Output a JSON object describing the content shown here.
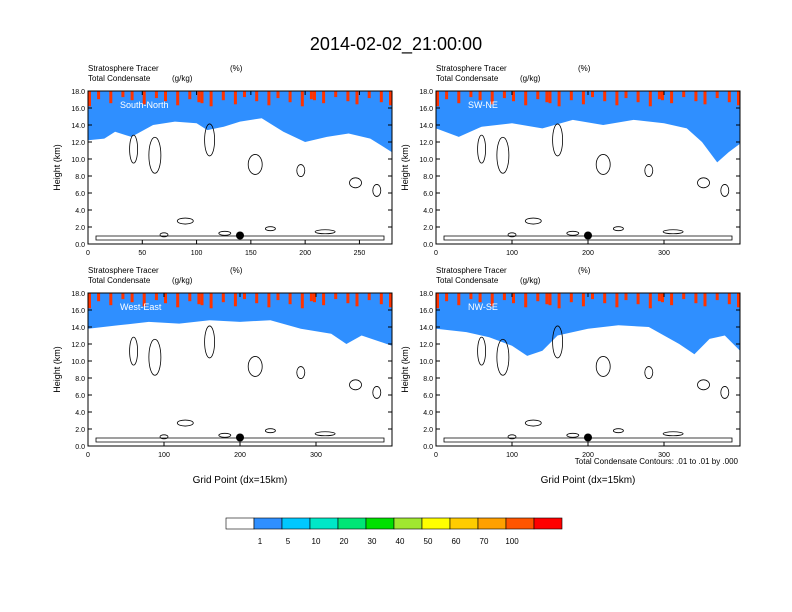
{
  "figure": {
    "title": "2014-02-02_21:00:00",
    "footnote": "Total Condensate Contours: .01 to .01 by .000"
  },
  "colorbar": {
    "labels": [
      "1",
      "5",
      "10",
      "20",
      "30",
      "40",
      "50",
      "60",
      "70",
      "100"
    ],
    "colors": [
      "#ffffff",
      "#2f8fff",
      "#00c8ff",
      "#00e8c8",
      "#00e676",
      "#00e000",
      "#a0e830",
      "#ffff00",
      "#ffcc00",
      "#ffa000",
      "#ff5500",
      "#ff0000"
    ]
  },
  "chart_data": [
    {
      "type": "heatmap",
      "label1": "Stratosphere Tracer",
      "unit1": "(%)",
      "label2": "Total Condensate",
      "unit2": "(g/kg)",
      "section": "South-North",
      "ylabel": "Height (km)",
      "xlabel": "",
      "xlim": [
        0,
        280
      ],
      "ylim": [
        0,
        18
      ],
      "xticks": [
        "0",
        "50",
        "100",
        "150",
        "200",
        "250"
      ],
      "xtick_values": [
        0,
        50,
        100,
        150,
        200,
        250
      ],
      "yticks": [
        "0.0",
        "2.0",
        "4.0",
        "6.0",
        "8.0",
        "10.0",
        "12.0",
        "14.0",
        "16.0",
        "18.0"
      ],
      "marker": {
        "x": 140,
        "y": 1.0
      },
      "tracer_front": [
        [
          0,
          13.0
        ],
        [
          15,
          13.2
        ],
        [
          25,
          14.0
        ],
        [
          40,
          13.4
        ],
        [
          60,
          14.8
        ],
        [
          80,
          15.2
        ],
        [
          100,
          15.0
        ],
        [
          110,
          14.2
        ],
        [
          125,
          14.6
        ],
        [
          140,
          15.2
        ],
        [
          160,
          15.6
        ],
        [
          180,
          14.0
        ],
        [
          200,
          12.8
        ],
        [
          220,
          13.4
        ],
        [
          240,
          13.8
        ],
        [
          260,
          13.2
        ],
        [
          280,
          11.6
        ]
      ]
    },
    {
      "type": "heatmap",
      "label1": "Stratosphere Tracer",
      "unit1": "(%)",
      "label2": "Total Condensate",
      "unit2": "(g/kg)",
      "section": "SW-NE",
      "ylabel": "Height (km)",
      "xlabel": "",
      "xlim": [
        0,
        400
      ],
      "ylim": [
        0,
        18
      ],
      "xticks": [
        "0",
        "100",
        "200",
        "300"
      ],
      "xtick_values": [
        0,
        100,
        200,
        300
      ],
      "yticks": [
        "0.0",
        "2.0",
        "4.0",
        "6.0",
        "8.0",
        "10.0",
        "12.0",
        "14.0",
        "16.0",
        "18.0"
      ],
      "marker": {
        "x": 200,
        "y": 1.0
      },
      "tracer_front": [
        [
          0,
          14.4
        ],
        [
          30,
          13.4
        ],
        [
          60,
          14.6
        ],
        [
          100,
          15.0
        ],
        [
          140,
          14.4
        ],
        [
          180,
          15.4
        ],
        [
          220,
          14.8
        ],
        [
          260,
          15.4
        ],
        [
          300,
          15.0
        ],
        [
          330,
          14.4
        ],
        [
          350,
          12.8
        ],
        [
          370,
          10.4
        ],
        [
          385,
          11.6
        ],
        [
          400,
          12.6
        ]
      ]
    },
    {
      "type": "heatmap",
      "label1": "Stratosphere Tracer",
      "unit1": "(%)",
      "label2": "Total Condensate",
      "unit2": "(g/kg)",
      "section": "West-East",
      "ylabel": "Height (km)",
      "xlabel": "Grid Point (dx=15km)",
      "xlim": [
        0,
        400
      ],
      "ylim": [
        0,
        18
      ],
      "xticks": [
        "0",
        "100",
        "200",
        "300"
      ],
      "xtick_values": [
        0,
        100,
        200,
        300
      ],
      "yticks": [
        "0.0",
        "2.0",
        "4.0",
        "6.0",
        "8.0",
        "10.0",
        "12.0",
        "14.0",
        "16.0",
        "18.0"
      ],
      "marker": {
        "x": 200,
        "y": 1.0
      },
      "tracer_front": [
        [
          0,
          14.6
        ],
        [
          40,
          15.0
        ],
        [
          80,
          15.4
        ],
        [
          120,
          15.2
        ],
        [
          160,
          15.6
        ],
        [
          200,
          15.4
        ],
        [
          240,
          15.6
        ],
        [
          280,
          14.6
        ],
        [
          320,
          14.0
        ],
        [
          340,
          12.8
        ],
        [
          360,
          13.8
        ],
        [
          380,
          13.2
        ],
        [
          400,
          12.6
        ]
      ]
    },
    {
      "type": "heatmap",
      "label1": "Stratosphere Tracer",
      "unit1": "(%)",
      "label2": "Total Condensate",
      "unit2": "(g/kg)",
      "section": "NW-SE",
      "ylabel": "Height (km)",
      "xlabel": "Grid Point (dx=15km)",
      "xlim": [
        0,
        400
      ],
      "ylim": [
        0,
        18
      ],
      "xticks": [
        "0",
        "100",
        "200",
        "300"
      ],
      "xtick_values": [
        0,
        100,
        200,
        300
      ],
      "yticks": [
        "0.0",
        "2.0",
        "4.0",
        "6.0",
        "8.0",
        "10.0",
        "12.0",
        "14.0",
        "16.0",
        "18.0"
      ],
      "marker": {
        "x": 200,
        "y": 1.0
      },
      "tracer_front": [
        [
          0,
          14.6
        ],
        [
          40,
          14.2
        ],
        [
          70,
          13.6
        ],
        [
          100,
          12.6
        ],
        [
          120,
          11.4
        ],
        [
          140,
          12.0
        ],
        [
          160,
          13.8
        ],
        [
          200,
          14.6
        ],
        [
          240,
          15.0
        ],
        [
          280,
          14.8
        ],
        [
          320,
          12.8
        ],
        [
          340,
          11.6
        ],
        [
          360,
          13.4
        ],
        [
          380,
          13.8
        ],
        [
          400,
          12.0
        ]
      ]
    }
  ]
}
